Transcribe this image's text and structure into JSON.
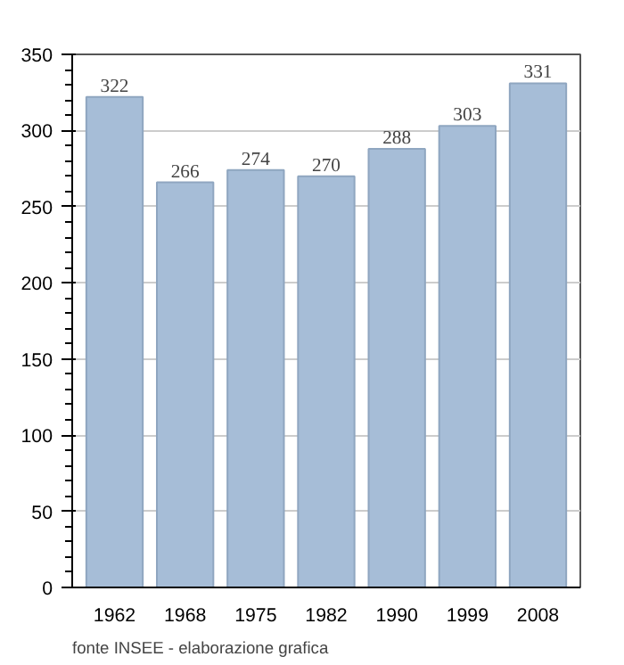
{
  "chart_data": {
    "type": "bar",
    "categories": [
      "1962",
      "1968",
      "1975",
      "1982",
      "1990",
      "1999",
      "2008"
    ],
    "values": [
      322,
      266,
      274,
      270,
      288,
      303,
      331
    ],
    "color": "#a6bdd7",
    "ylim": [
      0,
      350
    ],
    "yticks": [
      0,
      50,
      100,
      150,
      200,
      250,
      300,
      350
    ],
    "grid": "y",
    "data_labels": true,
    "annotations": [
      "fonte INSEE - elaborazione grafica"
    ]
  }
}
